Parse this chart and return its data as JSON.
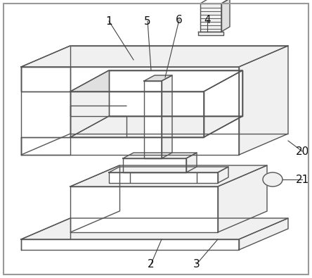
{
  "background_color": "#ffffff",
  "line_color": "#555555",
  "line_width": 1.0,
  "fill_white": "#ffffff",
  "fill_light": "#f0f0f0",
  "fill_mid": "#e0e0e0",
  "fig_width": 4.44,
  "fig_height": 3.95,
  "border_color": "#888888",
  "label_color": "#222222",
  "label_fontsize": 11
}
